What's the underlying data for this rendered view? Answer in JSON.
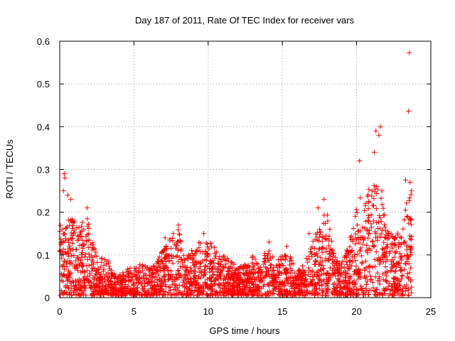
{
  "chart_data": {
    "type": "scatter",
    "title": "Day 187 of 2011, Rate Of TEC Index for receiver vars",
    "xlabel": "GPS time / hours",
    "ylabel": "ROTI / TECUs",
    "xlim": [
      0,
      25
    ],
    "ylim": [
      0,
      0.6
    ],
    "xticks": [
      "0",
      "5",
      "10",
      "15",
      "20",
      "25"
    ],
    "yticks": [
      "0",
      "0.1",
      "0.2",
      "0.3",
      "0.4",
      "0.5",
      "0.6"
    ],
    "grid": true,
    "marker": "plus",
    "color": "#ff0000",
    "series": [
      {
        "envelope": {
          "x": [
            0.0,
            0.3,
            0.6,
            1.0,
            1.4,
            1.8,
            2.2,
            2.6,
            3.0,
            3.4,
            3.8,
            4.2,
            4.6,
            5.0,
            5.5,
            6.0,
            6.5,
            7.0,
            7.5,
            8.0,
            8.5,
            9.0,
            9.5,
            10.0,
            10.5,
            11.0,
            11.5,
            12.0,
            12.5,
            13.0,
            13.5,
            14.0,
            14.5,
            15.0,
            15.5,
            16.0,
            16.5,
            17.0,
            17.5,
            18.0,
            18.5,
            19.0,
            19.5,
            20.0,
            20.3,
            20.6,
            21.0,
            21.4,
            21.8,
            22.0,
            22.5,
            23.0,
            23.4,
            23.7
          ],
          "ymax": [
            0.19,
            0.17,
            0.2,
            0.18,
            0.17,
            0.2,
            0.13,
            0.09,
            0.1,
            0.08,
            0.05,
            0.06,
            0.07,
            0.07,
            0.08,
            0.07,
            0.08,
            0.12,
            0.15,
            0.16,
            0.09,
            0.12,
            0.14,
            0.14,
            0.12,
            0.1,
            0.09,
            0.07,
            0.08,
            0.1,
            0.07,
            0.13,
            0.09,
            0.1,
            0.11,
            0.06,
            0.08,
            0.13,
            0.18,
            0.22,
            0.1,
            0.08,
            0.13,
            0.21,
            0.24,
            0.22,
            0.28,
            0.26,
            0.22,
            0.17,
            0.14,
            0.18,
            0.24,
            0.26
          ]
        },
        "outliers": [
          {
            "x": 0.25,
            "y": 0.25
          },
          {
            "x": 0.3,
            "y": 0.29
          },
          {
            "x": 0.35,
            "y": 0.28
          },
          {
            "x": 0.55,
            "y": 0.24
          },
          {
            "x": 0.75,
            "y": 0.23
          },
          {
            "x": 1.85,
            "y": 0.21
          },
          {
            "x": 7.1,
            "y": 0.14
          },
          {
            "x": 8.0,
            "y": 0.17
          },
          {
            "x": 9.7,
            "y": 0.15
          },
          {
            "x": 14.1,
            "y": 0.13
          },
          {
            "x": 15.3,
            "y": 0.12
          },
          {
            "x": 16.8,
            "y": 0.15
          },
          {
            "x": 17.4,
            "y": 0.21
          },
          {
            "x": 17.8,
            "y": 0.23
          },
          {
            "x": 18.2,
            "y": 0.16
          },
          {
            "x": 20.2,
            "y": 0.32
          },
          {
            "x": 20.6,
            "y": 0.22
          },
          {
            "x": 21.2,
            "y": 0.34
          },
          {
            "x": 21.3,
            "y": 0.39
          },
          {
            "x": 21.5,
            "y": 0.38
          },
          {
            "x": 21.6,
            "y": 0.4
          },
          {
            "x": 21.7,
            "y": 0.25
          },
          {
            "x": 23.3,
            "y": 0.275
          },
          {
            "x": 23.5,
            "y": 0.436
          },
          {
            "x": 23.55,
            "y": 0.573
          },
          {
            "x": 23.6,
            "y": 0.27
          },
          {
            "x": 23.7,
            "y": 0.25
          }
        ]
      }
    ]
  }
}
